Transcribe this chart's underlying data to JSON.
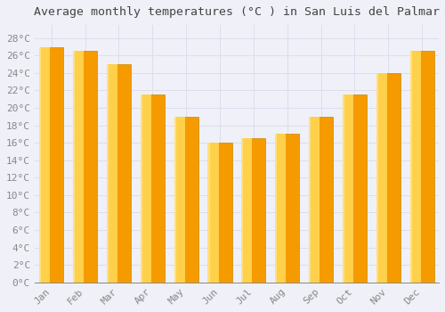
{
  "title": "Average monthly temperatures (°C ) in San Luis del Palmar",
  "months": [
    "Jan",
    "Feb",
    "Mar",
    "Apr",
    "May",
    "Jun",
    "Jul",
    "Aug",
    "Sep",
    "Oct",
    "Nov",
    "Dec"
  ],
  "values": [
    27,
    26.5,
    25,
    21.5,
    19,
    16,
    16.5,
    17,
    19,
    21.5,
    24,
    26.5
  ],
  "bar_color_left": "#FFD04A",
  "bar_color_right": "#F59B00",
  "bar_edge_color": "#CC8800",
  "background_color": "#F0F0F8",
  "grid_color": "#DDDDEE",
  "ytick_labels": [
    "0°C",
    "2°C",
    "4°C",
    "6°C",
    "8°C",
    "10°C",
    "12°C",
    "14°C",
    "16°C",
    "18°C",
    "20°C",
    "22°C",
    "24°C",
    "26°C",
    "28°C"
  ],
  "ytick_values": [
    0,
    2,
    4,
    6,
    8,
    10,
    12,
    14,
    16,
    18,
    20,
    22,
    24,
    26,
    28
  ],
  "ylim": [
    0,
    29.5
  ],
  "title_fontsize": 9.5,
  "tick_fontsize": 8,
  "title_color": "#444444",
  "tick_color": "#888888"
}
